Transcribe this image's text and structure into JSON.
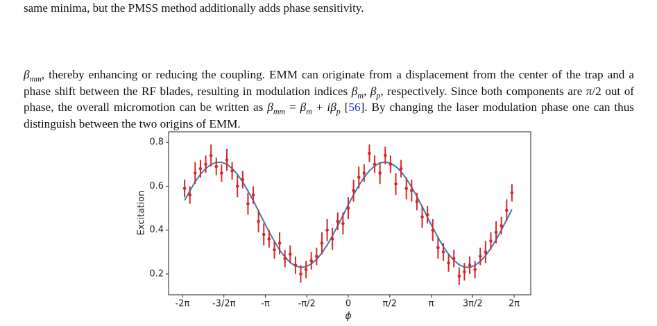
{
  "top_line": "same minima, but the PMSS method additionally adds phase sensitivity.",
  "paragraph": [
    "β",
    "mm",
    ", thereby enhancing or reducing the coupling. EMM can originate from a displacement from the center of the trap and a phase shift between the RF blades, resulting in modulation indices ",
    "β",
    "m",
    ", ",
    "β",
    "p",
    ", respectively. Since both components are ",
    "π",
    "/2 out of phase, the overall micromotion can be written as ",
    "β",
    "mm",
    " = ",
    "β",
    "m",
    " + ",
    "i",
    "β",
    "p",
    " [",
    "56",
    "]. By changing the laser modulation phase one can thus distinguish between the two origins of EMM."
  ],
  "chart_data": {
    "type": "errorbar",
    "xlabel": "ϕ",
    "ylabel": "Excitation",
    "xlim": [
      -6.807,
      6.912
    ],
    "ylim": [
      0.105,
      0.848
    ],
    "xticks": [
      {
        "value": -6.283,
        "label": "-2π"
      },
      {
        "value": -4.712,
        "label": "-3/2π"
      },
      {
        "value": -3.142,
        "label": "-π"
      },
      {
        "value": -1.571,
        "label": "-π/2"
      },
      0,
      {
        "value": 1.571,
        "label": "π/2"
      },
      {
        "value": 3.142,
        "label": "π"
      },
      {
        "value": 4.712,
        "label": "3π/2"
      },
      {
        "value": 6.283,
        "label": "2π"
      }
    ],
    "yticks": [
      0.2,
      0.4,
      0.6,
      0.8
    ],
    "x": [
      -6.2,
      -6.0,
      -5.8,
      -5.6,
      -5.4,
      -5.2,
      -5.0,
      -4.8,
      -4.6,
      -4.4,
      -4.2,
      -4.0,
      -3.8,
      -3.6,
      -3.4,
      -3.2,
      -3.0,
      -2.8,
      -2.6,
      -2.4,
      -2.2,
      -2.0,
      -1.8,
      -1.6,
      -1.4,
      -1.2,
      -1.0,
      -0.8,
      -0.6,
      -0.4,
      -0.2,
      0.0,
      0.2,
      0.4,
      0.6,
      0.8,
      1.0,
      1.2,
      1.4,
      1.6,
      1.8,
      2.0,
      2.2,
      2.4,
      2.6,
      2.8,
      3.0,
      3.2,
      3.4,
      3.6,
      3.8,
      4.0,
      4.2,
      4.4,
      4.6,
      4.8,
      5.0,
      5.2,
      5.4,
      5.6,
      5.8,
      6.0,
      6.2
    ],
    "series": [
      {
        "color": "#d62728",
        "values": [
          0.59,
          0.56,
          0.66,
          0.68,
          0.7,
          0.74,
          0.69,
          0.66,
          0.72,
          0.67,
          0.6,
          0.63,
          0.52,
          0.56,
          0.44,
          0.38,
          0.36,
          0.31,
          0.34,
          0.27,
          0.29,
          0.24,
          0.2,
          0.22,
          0.26,
          0.28,
          0.34,
          0.4,
          0.36,
          0.44,
          0.43,
          0.5,
          0.58,
          0.64,
          0.66,
          0.75,
          0.7,
          0.66,
          0.74,
          0.7,
          0.61,
          0.68,
          0.59,
          0.58,
          0.53,
          0.46,
          0.47,
          0.4,
          0.32,
          0.3,
          0.25,
          0.27,
          0.19,
          0.21,
          0.24,
          0.22,
          0.28,
          0.3,
          0.35,
          0.39,
          0.42,
          0.49,
          0.57
        ],
        "errors": [
          0.04,
          0.04,
          0.05,
          0.04,
          0.04,
          0.05,
          0.04,
          0.04,
          0.05,
          0.04,
          0.05,
          0.04,
          0.05,
          0.04,
          0.05,
          0.05,
          0.04,
          0.04,
          0.05,
          0.04,
          0.04,
          0.04,
          0.04,
          0.04,
          0.04,
          0.04,
          0.05,
          0.05,
          0.05,
          0.04,
          0.05,
          0.05,
          0.05,
          0.05,
          0.04,
          0.04,
          0.04,
          0.05,
          0.04,
          0.04,
          0.05,
          0.04,
          0.05,
          0.05,
          0.04,
          0.05,
          0.04,
          0.05,
          0.05,
          0.04,
          0.04,
          0.04,
          0.04,
          0.04,
          0.04,
          0.04,
          0.04,
          0.05,
          0.04,
          0.05,
          0.04,
          0.05,
          0.04
        ]
      },
      {
        "color": "#3a7db4",
        "values": [
          0.535,
          0.579,
          0.62,
          0.654,
          0.681,
          0.699,
          0.709,
          0.709,
          0.7,
          0.681,
          0.654,
          0.62,
          0.578,
          0.535,
          0.486,
          0.439,
          0.392,
          0.349,
          0.309,
          0.278,
          0.252,
          0.236,
          0.23,
          0.233,
          0.246,
          0.266,
          0.295,
          0.332,
          0.374,
          0.419,
          0.467,
          0.515,
          0.561,
          0.603,
          0.64,
          0.67,
          0.693,
          0.706,
          0.71,
          0.705,
          0.69,
          0.666,
          0.634,
          0.596,
          0.553,
          0.507,
          0.458,
          0.411,
          0.366,
          0.325,
          0.29,
          0.262,
          0.242,
          0.231,
          0.23,
          0.239,
          0.257,
          0.283,
          0.317,
          0.356,
          0.4,
          0.447,
          0.495
        ]
      }
    ]
  }
}
